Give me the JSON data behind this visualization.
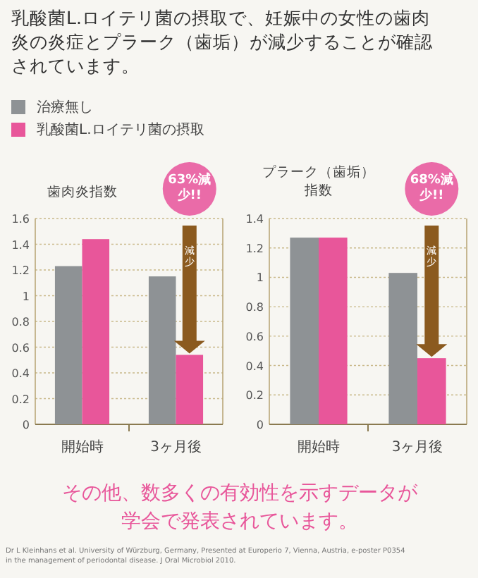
{
  "chart_data": [
    {
      "type": "bar",
      "title": "乳酸菌L.ロイテリ菌の摂取で、妊娠中の女性の歯肉炎の炎症とプラーク（歯垢）が減少することが確認されています。",
      "ylabel": "歯肉炎指数",
      "categories": [
        "開始時",
        "3ヶ月後"
      ],
      "series": [
        {
          "name": "治療無し",
          "color": "#8e9295",
          "values": [
            1.23,
            1.15
          ]
        },
        {
          "name": "乳酸菌L.ロイテリ菌の摂取",
          "color": "#e8569a",
          "values": [
            1.44,
            0.54
          ]
        }
      ],
      "ylim": [
        0,
        1.6
      ],
      "yticks": [
        0,
        0.2,
        0.4,
        0.6,
        0.8,
        1,
        1.2,
        1.4,
        1.6
      ],
      "grid": "y",
      "legend": "top",
      "annotations": [
        "63%減少!!",
        "減少"
      ]
    },
    {
      "type": "bar",
      "ylabel": "プラーク（歯垢）指数",
      "categories": [
        "開始時",
        "3ヶ月後"
      ],
      "series": [
        {
          "color": "#8e9295",
          "values": [
            1.27,
            1.03
          ]
        },
        {
          "color": "#e8569a",
          "values": [
            1.27,
            0.45
          ]
        }
      ],
      "ylim": [
        0,
        1.4
      ],
      "yticks": [
        0,
        0.2,
        0.4,
        0.6,
        0.8,
        1,
        1.2,
        1.4
      ],
      "grid": "y",
      "annotations": [
        "68%減少!!",
        "減少",
        "その他、数多くの有効性を示すデータが学会で発表されています。",
        "Dr L Kleinhans et al. University of Würzburg, Germany, Presented at Europerio 7, Vienna, Austria, e-poster P0354\nin the management of periodontal disease. J Oral Microbiol 2010."
      ]
    }
  ]
}
